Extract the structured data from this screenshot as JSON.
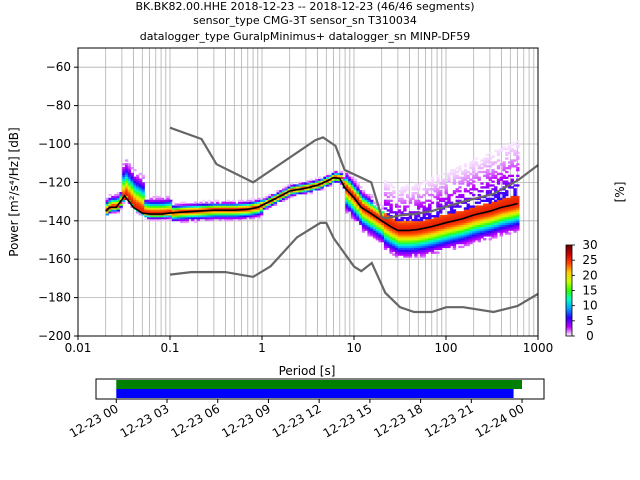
{
  "chart_data": {
    "type": "heatmap",
    "title_lines": [
      "BK.BK82.00.HHE   2018-12-23 -- 2018-12-23  (46/46 segments)",
      "sensor_type CMG-3T sensor_sn T310034",
      "datalogger_type GuralpMinimus+ datalogger_sn MINP-DF59"
    ],
    "xlabel": "Period [s]",
    "ylabel": "Power [m²/s⁴/Hz] [dB]",
    "x_scale": "log",
    "xlim": [
      0.01,
      1000
    ],
    "ylim": [
      -200,
      -50
    ],
    "x_ticks": [
      {
        "v": 0.01,
        "label": "0.01"
      },
      {
        "v": 0.1,
        "label": "0.1"
      },
      {
        "v": 1,
        "label": "1"
      },
      {
        "v": 10,
        "label": "10"
      },
      {
        "v": 100,
        "label": "100"
      },
      {
        "v": 1000,
        "label": "1000"
      }
    ],
    "y_ticks": [
      {
        "v": -60,
        "label": "−60"
      },
      {
        "v": -80,
        "label": "−80"
      },
      {
        "v": -100,
        "label": "−100"
      },
      {
        "v": -120,
        "label": "−120"
      },
      {
        "v": -140,
        "label": "−140"
      },
      {
        "v": -160,
        "label": "−160"
      },
      {
        "v": -180,
        "label": "−180"
      },
      {
        "v": -200,
        "label": "−200"
      }
    ],
    "grid": true,
    "colorbar": {
      "label": "[%]",
      "range": [
        0,
        30
      ],
      "ticks": [
        {
          "v": 0,
          "label": "0"
        },
        {
          "v": 5,
          "label": "5"
        },
        {
          "v": 10,
          "label": "10"
        },
        {
          "v": 15,
          "label": "15"
        },
        {
          "v": 20,
          "label": "20"
        },
        {
          "v": 25,
          "label": "25"
        },
        {
          "v": 30,
          "label": "30"
        }
      ],
      "colors": [
        "#ffffff",
        "#bb00ff",
        "#2a00ff",
        "#00a0ff",
        "#00ffcc",
        "#33ff00",
        "#ccff00",
        "#ffcc00",
        "#ff4400",
        "#cc0000",
        "#660000"
      ]
    },
    "noise_models": [
      {
        "points": [
          [
            0.1,
            -91.5
          ],
          [
            0.22,
            -97.4
          ],
          [
            0.32,
            -110.5
          ],
          [
            0.8,
            -120
          ],
          [
            3.8,
            -98
          ],
          [
            4.6,
            -96.5
          ],
          [
            6.3,
            -101
          ],
          [
            7.9,
            -113.5
          ],
          [
            15.4,
            -120
          ],
          [
            20,
            -138
          ],
          [
            21.9,
            -138.7
          ],
          [
            31.6,
            -137.2
          ],
          [
            45,
            -136.5
          ],
          [
            70,
            -135
          ],
          [
            101,
            -132.5
          ],
          [
            154,
            -130
          ],
          [
            328,
            -126
          ],
          [
            600,
            -119
          ],
          [
            1000,
            -111
          ]
        ]
      },
      {
        "points": [
          [
            0.1,
            -168
          ],
          [
            0.17,
            -166.7
          ],
          [
            0.4,
            -166.7
          ],
          [
            0.8,
            -169.2
          ],
          [
            1.24,
            -163.7
          ],
          [
            2.4,
            -148.6
          ],
          [
            4.3,
            -141.1
          ],
          [
            5,
            -141.1
          ],
          [
            6,
            -149
          ],
          [
            10,
            -163.8
          ],
          [
            12,
            -166.2
          ],
          [
            15.6,
            -162
          ],
          [
            21.9,
            -177.5
          ],
          [
            31.6,
            -185
          ],
          [
            45,
            -187.5
          ],
          [
            70,
            -187.5
          ],
          [
            101,
            -185
          ],
          [
            154,
            -185
          ],
          [
            328,
            -187.5
          ],
          [
            600,
            -184.4
          ],
          [
            1000,
            -178
          ]
        ]
      }
    ],
    "mode_line": [
      [
        0.02,
        -135
      ],
      [
        0.022,
        -133
      ],
      [
        0.026,
        -133
      ],
      [
        0.03,
        -129
      ],
      [
        0.032,
        -127
      ],
      [
        0.036,
        -130
      ],
      [
        0.04,
        -133
      ],
      [
        0.05,
        -136
      ],
      [
        0.06,
        -136.5
      ],
      [
        0.08,
        -136.5
      ],
      [
        0.1,
        -136
      ],
      [
        0.13,
        -135.5
      ],
      [
        0.2,
        -135
      ],
      [
        0.3,
        -134.5
      ],
      [
        0.5,
        -134.5
      ],
      [
        0.7,
        -134
      ],
      [
        0.9,
        -133
      ],
      [
        1.2,
        -130
      ],
      [
        1.6,
        -127
      ],
      [
        2,
        -124.5
      ],
      [
        3,
        -123
      ],
      [
        4,
        -121.5
      ],
      [
        5,
        -119.5
      ],
      [
        6,
        -117.5
      ],
      [
        7,
        -118
      ],
      [
        8,
        -123
      ],
      [
        10,
        -128
      ],
      [
        12,
        -133
      ],
      [
        15,
        -136
      ],
      [
        20,
        -140
      ],
      [
        25,
        -143
      ],
      [
        30,
        -145
      ],
      [
        40,
        -145
      ],
      [
        50,
        -144.5
      ],
      [
        70,
        -143
      ],
      [
        100,
        -141
      ],
      [
        150,
        -139
      ],
      [
        200,
        -137
      ],
      [
        300,
        -135
      ],
      [
        400,
        -133
      ],
      [
        500,
        -132
      ],
      [
        600,
        -131
      ]
    ],
    "timeline": {
      "tick_labels": [
        "12-23 00",
        "12-23 03",
        "12-23 06",
        "12-23 09",
        "12-23 12",
        "12-23 15",
        "12-23 18",
        "12-23 21",
        "12-24 00"
      ],
      "range_hours": [
        -1.2,
        25.3
      ],
      "bars": [
        {
          "color": "#008000",
          "start_hours": 0,
          "end_hours": 24
        },
        {
          "color": "#0000ff",
          "start_hours": 0,
          "end_hours": 23.5
        }
      ]
    }
  }
}
